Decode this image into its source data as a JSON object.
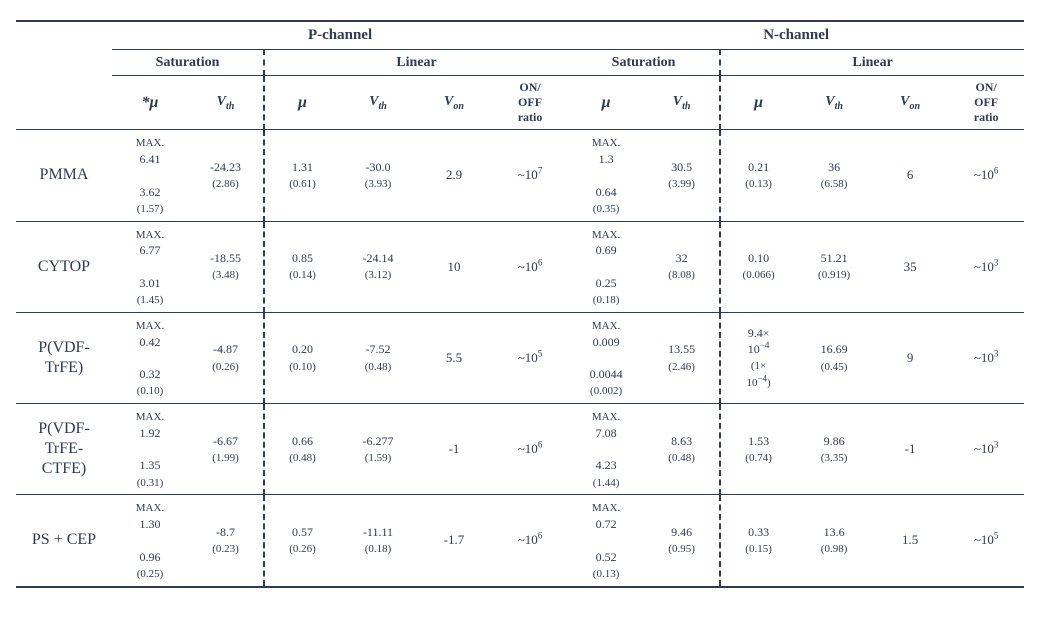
{
  "header": {
    "p_channel": "P-channel",
    "n_channel": "N-channel",
    "saturation": "Saturation",
    "linear": "Linear",
    "mu": "μ",
    "mu_star": "*μ",
    "vth_html": "V<sub>th</sub>",
    "von_html": "V<sub>on</sub>",
    "onoff_html": "ON/<br>OFF<br>ratio",
    "max_label": "MAX."
  },
  "rows": [
    {
      "label": "PMMA",
      "p": {
        "sat": {
          "mu_max": "6.41",
          "mu_mean": "3.62",
          "mu_sd": "(1.57)",
          "vth_mean": "-24.23",
          "vth_sd": "(2.86)"
        },
        "lin": {
          "mu_mean": "1.31",
          "mu_sd": "(0.61)",
          "vth_mean": "-30.0",
          "vth_sd": "(3.93)",
          "von": "2.9",
          "onoff_html": "~10<sup>7</sup>"
        }
      },
      "n": {
        "sat": {
          "mu_max": "1.3",
          "mu_mean": "0.64",
          "mu_sd": "(0.35)",
          "vth_mean": "30.5",
          "vth_sd": "(3.99)"
        },
        "lin": {
          "mu_mean": "0.21",
          "mu_sd": "(0.13)",
          "vth_mean": "36",
          "vth_sd": "(6.58)",
          "von": "6",
          "onoff_html": "~10<sup>6</sup>"
        }
      }
    },
    {
      "label": "CYTOP",
      "p": {
        "sat": {
          "mu_max": "6.77",
          "mu_mean": "3.01",
          "mu_sd": "(1.45)",
          "vth_mean": "-18.55",
          "vth_sd": "(3.48)"
        },
        "lin": {
          "mu_mean": "0.85",
          "mu_sd": "(0.14)",
          "vth_mean": "-24.14",
          "vth_sd": "(3.12)",
          "von": "10",
          "onoff_html": "~10<sup>6</sup>"
        }
      },
      "n": {
        "sat": {
          "mu_max": "0.69",
          "mu_mean": "0.25",
          "mu_sd": "(0.18)",
          "vth_mean": "32",
          "vth_sd": "(8.08)"
        },
        "lin": {
          "mu_mean": "0.10",
          "mu_sd": "(0.066)",
          "vth_mean": "51.21",
          "vth_sd": "(0.919)",
          "von": "35",
          "onoff_html": "~10<sup>3</sup>"
        }
      }
    },
    {
      "label": "P(VDF-<br>TrFE)",
      "p": {
        "sat": {
          "mu_max": "0.42",
          "mu_mean": "0.32",
          "mu_sd": "(0.10)",
          "vth_mean": "-4.87",
          "vth_sd": "(0.26)"
        },
        "lin": {
          "mu_mean": "0.20",
          "mu_sd": "(0.10)",
          "vth_mean": "-7.52",
          "vth_sd": "(0.48)",
          "von": "5.5",
          "onoff_html": "~10<sup>5</sup>"
        }
      },
      "n": {
        "sat": {
          "mu_max": "0.009",
          "mu_mean": "0.0044",
          "mu_sd": "(0.002)",
          "vth_mean": "13.55",
          "vth_sd": "(2.46)"
        },
        "lin": {
          "mu_mean_html": "9.4×<br>10<sup>−4</sup>",
          "mu_sd_html": "(1×<br>10<sup>−4</sup>)",
          "vth_mean": "16.69",
          "vth_sd": "(0.45)",
          "von": "9",
          "onoff_html": "~10<sup>3</sup>"
        }
      }
    },
    {
      "label": "P(VDF-<br>TrFE-<br>CTFE)",
      "p": {
        "sat": {
          "mu_max": "1.92",
          "mu_mean": "1.35",
          "mu_sd": "(0.31)",
          "vth_mean": "-6.67",
          "vth_sd": "(1.99)"
        },
        "lin": {
          "mu_mean": "0.66",
          "mu_sd": "(0.48)",
          "vth_mean": "-6.277",
          "vth_sd": "(1.59)",
          "von": "-1",
          "onoff_html": "~10<sup>6</sup>"
        }
      },
      "n": {
        "sat": {
          "mu_max": "7.08",
          "mu_mean": "4.23",
          "mu_sd": "(1.44)",
          "vth_mean": "8.63",
          "vth_sd": "(0.48)"
        },
        "lin": {
          "mu_mean": "1.53",
          "mu_sd": "(0.74)",
          "vth_mean": "9.86",
          "vth_sd": "(3.35)",
          "von": "-1",
          "onoff_html": "~10<sup>3</sup>"
        }
      }
    },
    {
      "label": "PS + CEP",
      "p": {
        "sat": {
          "mu_max": "1.30",
          "mu_mean": "0.96",
          "mu_sd": "(0.25)",
          "vth_mean": "-8.7",
          "vth_sd": "(0.23)"
        },
        "lin": {
          "mu_mean": "0.57",
          "mu_sd": "(0.26)",
          "vth_mean": "-11.11",
          "vth_sd": "(0.18)",
          "von": "-1.7",
          "onoff_html": "~10<sup>6</sup>"
        }
      },
      "n": {
        "sat": {
          "mu_max": "0.72",
          "mu_mean": "0.52",
          "mu_sd": "(0.13)",
          "vth_mean": "9.46",
          "vth_sd": "(0.95)"
        },
        "lin": {
          "mu_mean": "0.33",
          "mu_sd": "(0.15)",
          "vth_mean": "13.6",
          "vth_sd": "(0.98)",
          "von": "1.5",
          "onoff_html": "~10<sup>5</sup>"
        }
      }
    }
  ]
}
